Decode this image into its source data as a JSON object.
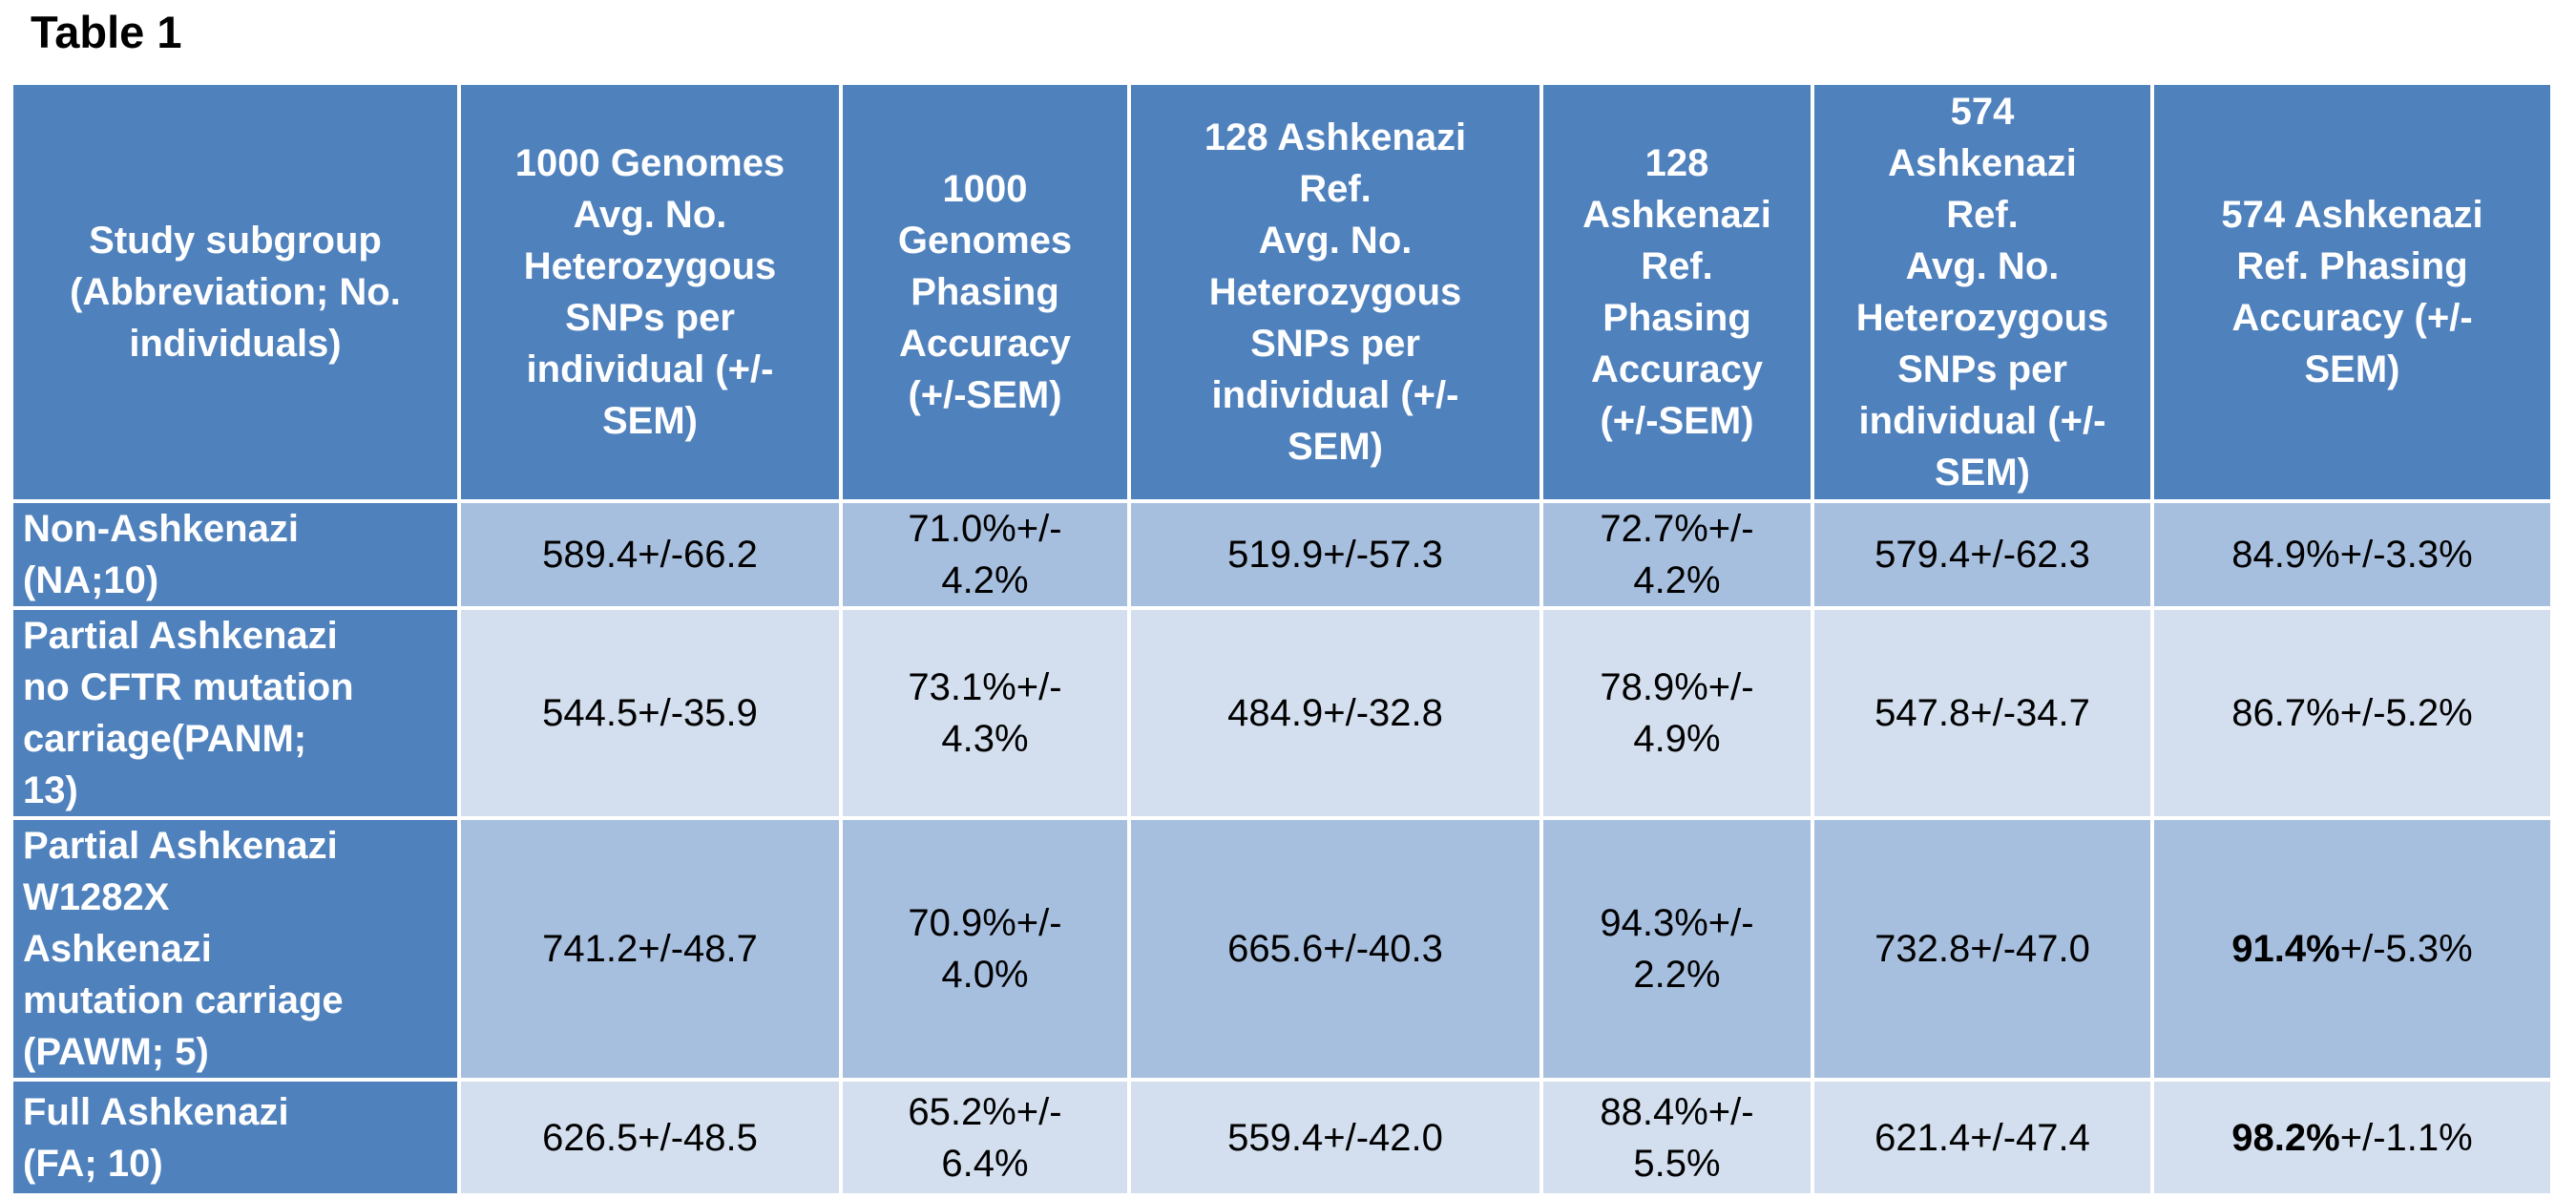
{
  "title": "Table 1",
  "columns": [
    "Study subgroup\n(Abbreviation; No.\nindividuals)",
    "1000 Genomes\nAvg. No.\nHeterozygous\nSNPs per\nindividual (+/-\nSEM)",
    "1000\nGenomes\nPhasing\nAccuracy\n(+/-SEM)",
    "128 Ashkenazi\nRef.\nAvg. No.\nHeterozygous\nSNPs per\nindividual (+/-\nSEM)",
    "128\nAshkenazi\nRef.\nPhasing\nAccuracy\n(+/-SEM)",
    "574\nAshkenazi\nRef.\nAvg. No.\nHeterozygous\nSNPs per\nindividual (+/-\nSEM)",
    "574 Ashkenazi\nRef. Phasing\nAccuracy (+/-\nSEM)"
  ],
  "rows": [
    {
      "subgroup": "Non-Ashkenazi\n(NA;10)",
      "g1000_snps": "589.4+/-66.2",
      "g1000_acc": "71.0%+/-\n4.2%",
      "a128_snps": "519.9+/-57.3",
      "a128_acc": "72.7%+/-\n4.2%",
      "a574_snps": "579.4+/-62.3",
      "a574_acc_bold": "",
      "a574_acc_rest": "84.9%+/-3.3%"
    },
    {
      "subgroup": "Partial Ashkenazi\nno CFTR mutation\ncarriage(PANM;\n13)",
      "g1000_snps": "544.5+/-35.9",
      "g1000_acc": "73.1%+/-\n4.3%",
      "a128_snps": "484.9+/-32.8",
      "a128_acc": "78.9%+/-\n4.9%",
      "a574_snps": "547.8+/-34.7",
      "a574_acc_bold": "",
      "a574_acc_rest": "86.7%+/-5.2%"
    },
    {
      "subgroup": "Partial Ashkenazi\nW1282X\nAshkenazi\nmutation carriage\n(PAWM; 5)",
      "g1000_snps": "741.2+/-48.7",
      "g1000_acc": "70.9%+/-\n4.0%",
      "a128_snps": "665.6+/-40.3",
      "a128_acc": "94.3%+/-\n2.2%",
      "a574_snps": "732.8+/-47.0",
      "a574_acc_bold": "91.4%",
      "a574_acc_rest": "+/-5.3%"
    },
    {
      "subgroup": "Full Ashkenazi\n(FA; 10)",
      "g1000_snps": "626.5+/-48.5",
      "g1000_acc": "65.2%+/-\n6.4%",
      "a128_snps": "559.4+/-42.0",
      "a128_acc": "88.4%+/-\n5.5%",
      "a574_snps": "621.4+/-47.4",
      "a574_acc_bold": "98.2%",
      "a574_acc_rest": "+/-1.1%"
    }
  ],
  "colors": {
    "header": "#4f81bd",
    "row_dark": "#a7bfde",
    "row_light": "#d3dfee"
  }
}
